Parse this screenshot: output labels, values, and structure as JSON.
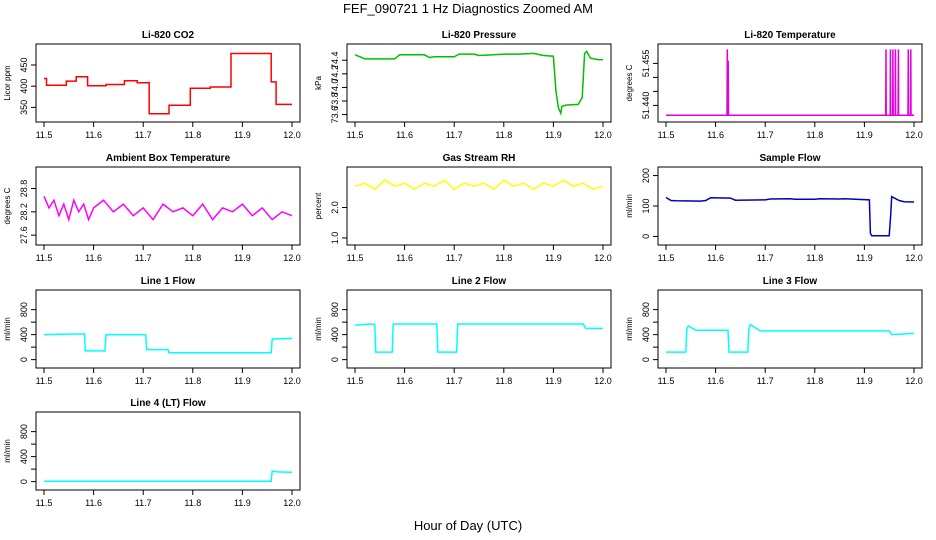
{
  "title": "FEF_090721  1 Hz Diagnostics Zoomed AM",
  "xlabel": "Hour of Day (UTC)",
  "chart_data": [
    {
      "type": "line",
      "title": "Li-820 CO2",
      "ylabel": "Licor ppm",
      "color": "#ff0000",
      "xlim": [
        11.5,
        12.0
      ],
      "ylim": [
        325,
        490
      ],
      "xticks": [
        "11.5",
        "11.6",
        "11.7",
        "11.8",
        "11.9",
        "12.0"
      ],
      "yticks": [
        {
          "value": 350,
          "label": "350"
        },
        {
          "value": 400,
          "label": "400"
        },
        {
          "value": 450,
          "label": "450"
        }
      ],
      "series": [
        {
          "x": [
            11.5,
            11.505,
            11.505,
            11.545,
            11.545,
            11.565,
            11.565,
            11.588,
            11.588,
            11.625,
            11.625,
            11.662,
            11.662,
            11.688,
            11.688,
            11.712,
            11.712,
            11.752,
            11.752,
            11.795,
            11.795,
            11.835,
            11.835,
            11.877,
            11.877,
            11.958,
            11.958,
            11.968,
            11.968,
            12.0
          ],
          "y": [
            418,
            418,
            402,
            402,
            412,
            412,
            422,
            422,
            401,
            401,
            404,
            404,
            413,
            413,
            408,
            408,
            335,
            335,
            355,
            355,
            395,
            395,
            398,
            398,
            477,
            477,
            410,
            410,
            357,
            357
          ]
        }
      ]
    },
    {
      "type": "line",
      "title": "Li-820 Pressure",
      "ylabel": "kPa",
      "color": "#00c000",
      "xlim": [
        11.5,
        12.0
      ],
      "ylim": [
        73.55,
        74.58
      ],
      "xticks": [
        "11.5",
        "11.6",
        "11.7",
        "11.8",
        "11.9",
        "12.0"
      ],
      "yticks": [
        {
          "value": 73.6,
          "label": "73.6"
        },
        {
          "value": 73.8,
          "label": "73.8"
        },
        {
          "value": 74.0,
          "label": "74.0"
        },
        {
          "value": 74.2,
          "label": "74.2"
        },
        {
          "value": 74.4,
          "label": "74.4"
        }
      ],
      "series": [
        {
          "x": [
            11.5,
            11.51,
            11.52,
            11.58,
            11.59,
            11.64,
            11.65,
            11.66,
            11.7,
            11.71,
            11.74,
            11.75,
            11.78,
            11.8,
            11.83,
            11.86,
            11.88,
            11.9,
            11.905,
            11.91,
            11.915,
            11.917,
            11.925,
            11.95,
            11.958,
            11.963,
            11.967,
            11.975,
            11.99,
            12.0
          ],
          "y": [
            74.48,
            74.45,
            74.42,
            74.42,
            74.48,
            74.48,
            74.44,
            74.45,
            74.45,
            74.49,
            74.49,
            74.47,
            74.48,
            74.49,
            74.49,
            74.5,
            74.47,
            74.46,
            73.95,
            73.7,
            73.62,
            73.72,
            73.74,
            73.75,
            73.85,
            74.5,
            74.53,
            74.43,
            74.41,
            74.41
          ]
        }
      ]
    },
    {
      "type": "line",
      "title": "Li-820 Temperature",
      "ylabel": "degrees C",
      "color": "#e000e0",
      "xlim": [
        11.5,
        12.0
      ],
      "ylim": [
        51.4355,
        51.4605
      ],
      "xticks": [
        "11.5",
        "11.6",
        "11.7",
        "11.8",
        "11.9",
        "12.0"
      ],
      "yticks": [
        {
          "value": 51.44,
          "label": "51.440"
        },
        {
          "value": 51.445,
          "label": ""
        },
        {
          "value": 51.45,
          "label": ""
        },
        {
          "value": 51.455,
          "label": "51.455"
        }
      ],
      "series": [
        {
          "x": [
            11.5,
            11.623,
            11.6235,
            11.624,
            11.625,
            11.6255,
            11.626,
            11.943,
            11.9435,
            11.944,
            11.952,
            11.9525,
            11.953,
            11.957,
            11.9575,
            11.958,
            11.962,
            11.9625,
            11.963,
            11.968,
            11.9685,
            11.969,
            11.988,
            11.9885,
            11.989,
            11.993,
            11.9935,
            11.994,
            12.0
          ],
          "y": [
            51.4365,
            51.4365,
            51.46,
            51.4365,
            51.4365,
            51.456,
            51.4365,
            51.4365,
            51.46,
            51.4365,
            51.4365,
            51.46,
            51.4365,
            51.4365,
            51.46,
            51.4365,
            51.4365,
            51.46,
            51.4365,
            51.4365,
            51.46,
            51.4365,
            51.4365,
            51.46,
            51.4365,
            51.4365,
            51.46,
            51.4365,
            51.4365
          ]
        }
      ]
    },
    {
      "type": "line",
      "title": "Ambient Box Temperature",
      "ylabel": "degrees C",
      "color": "#ff00ff",
      "xlim": [
        11.5,
        12.0
      ],
      "ylim": [
        27.45,
        29.25
      ],
      "xticks": [
        "11.5",
        "11.6",
        "11.7",
        "11.8",
        "11.9",
        "12.0"
      ],
      "yticks": [
        {
          "value": 27.6,
          "label": "27.6"
        },
        {
          "value": 28.2,
          "label": "28.2"
        },
        {
          "value": 28.8,
          "label": "28.8"
        }
      ],
      "series": [
        {
          "x": [
            11.5,
            11.51,
            11.52,
            11.53,
            11.54,
            11.55,
            11.56,
            11.57,
            11.58,
            11.59,
            11.6,
            11.62,
            11.64,
            11.66,
            11.68,
            11.7,
            11.72,
            11.74,
            11.76,
            11.78,
            11.8,
            11.82,
            11.84,
            11.86,
            11.88,
            11.9,
            11.92,
            11.94,
            11.96,
            11.98,
            12.0
          ],
          "y": [
            28.6,
            28.3,
            28.5,
            28.1,
            28.4,
            28.0,
            28.5,
            28.2,
            28.4,
            28.0,
            28.3,
            28.5,
            28.2,
            28.4,
            28.1,
            28.3,
            28.0,
            28.4,
            28.2,
            28.3,
            28.1,
            28.4,
            28.0,
            28.3,
            28.2,
            28.4,
            28.1,
            28.3,
            28.0,
            28.2,
            28.1
          ]
        }
      ]
    },
    {
      "type": "line",
      "title": "Gas Stream RH",
      "ylabel": "percent",
      "color": "#ffff00",
      "xlim": [
        11.5,
        12.0
      ],
      "ylim": [
        0.9,
        3.2
      ],
      "xticks": [
        "11.5",
        "11.6",
        "11.7",
        "11.8",
        "11.9",
        "12.0"
      ],
      "yticks": [
        {
          "value": 1.0,
          "label": "1.0"
        },
        {
          "value": 2.0,
          "label": "2.0"
        }
      ],
      "series": [
        {
          "x": [
            11.5,
            11.52,
            11.54,
            11.56,
            11.58,
            11.6,
            11.62,
            11.64,
            11.66,
            11.68,
            11.7,
            11.72,
            11.74,
            11.76,
            11.78,
            11.8,
            11.82,
            11.84,
            11.86,
            11.88,
            11.9,
            11.92,
            11.94,
            11.96,
            11.98,
            12.0
          ],
          "y": [
            2.7,
            2.8,
            2.6,
            2.9,
            2.7,
            2.8,
            2.6,
            2.8,
            2.7,
            2.9,
            2.6,
            2.8,
            2.7,
            2.8,
            2.6,
            2.9,
            2.7,
            2.8,
            2.6,
            2.8,
            2.7,
            2.9,
            2.7,
            2.8,
            2.6,
            2.7
          ]
        }
      ]
    },
    {
      "type": "line",
      "title": "Sample Flow",
      "ylabel": "ml/min",
      "color": "#0000c0",
      "xlim": [
        11.5,
        12.0
      ],
      "ylim": [
        -15,
        215
      ],
      "xticks": [
        "11.5",
        "11.6",
        "11.7",
        "11.8",
        "11.9",
        "12.0"
      ],
      "yticks": [
        {
          "value": 0,
          "label": "0"
        },
        {
          "value": 100,
          "label": "100"
        },
        {
          "value": 200,
          "label": "200"
        }
      ],
      "series": [
        {
          "x": [
            11.5,
            11.51,
            11.52,
            11.57,
            11.58,
            11.59,
            11.63,
            11.64,
            11.7,
            11.71,
            11.75,
            11.76,
            11.8,
            11.81,
            11.85,
            11.86,
            11.91,
            11.912,
            11.915,
            11.95,
            11.953,
            11.955,
            11.97,
            11.98,
            12.0
          ],
          "y": [
            128,
            118,
            117,
            116,
            118,
            127,
            126,
            119,
            120,
            123,
            124,
            122,
            122,
            124,
            123,
            124,
            120,
            10,
            2,
            2,
            70,
            131,
            118,
            114,
            113
          ]
        }
      ]
    },
    {
      "type": "line",
      "title": "Line 1 Flow",
      "ylabel": "ml/min",
      "color": "#00ffff",
      "xlim": [
        11.5,
        12.0
      ],
      "ylim": [
        -70,
        1050
      ],
      "xticks": [
        "11.5",
        "11.6",
        "11.7",
        "11.8",
        "11.9",
        "12.0"
      ],
      "yticks": [
        {
          "value": 0,
          "label": "0"
        },
        {
          "value": 200,
          "label": ""
        },
        {
          "value": 400,
          "label": "400"
        },
        {
          "value": 600,
          "label": ""
        },
        {
          "value": 800,
          "label": "800"
        }
      ],
      "series": [
        {
          "x": [
            11.5,
            11.56,
            11.582,
            11.583,
            11.623,
            11.625,
            11.705,
            11.707,
            11.75,
            11.752,
            11.958,
            11.96,
            12.0
          ],
          "y": [
            400,
            410,
            410,
            140,
            140,
            400,
            400,
            160,
            160,
            110,
            110,
            330,
            340
          ]
        }
      ]
    },
    {
      "type": "line",
      "title": "Line 2 Flow",
      "ylabel": "ml/min",
      "color": "#00ffff",
      "xlim": [
        11.5,
        12.0
      ],
      "ylim": [
        -70,
        1050
      ],
      "xticks": [
        "11.5",
        "11.6",
        "11.7",
        "11.8",
        "11.9",
        "12.0"
      ],
      "yticks": [
        {
          "value": 0,
          "label": "0"
        },
        {
          "value": 200,
          "label": ""
        },
        {
          "value": 400,
          "label": "400"
        },
        {
          "value": 600,
          "label": ""
        },
        {
          "value": 800,
          "label": "800"
        }
      ],
      "series": [
        {
          "x": [
            11.5,
            11.53,
            11.54,
            11.542,
            11.575,
            11.577,
            11.665,
            11.667,
            11.705,
            11.707,
            11.96,
            11.965,
            12.0
          ],
          "y": [
            550,
            570,
            560,
            120,
            120,
            570,
            570,
            120,
            120,
            570,
            570,
            500,
            500
          ]
        }
      ]
    },
    {
      "type": "line",
      "title": "Line 3 Flow",
      "ylabel": "ml/min",
      "color": "#00ffff",
      "xlim": [
        11.5,
        12.0
      ],
      "ylim": [
        -70,
        1050
      ],
      "xticks": [
        "11.5",
        "11.6",
        "11.7",
        "11.8",
        "11.9",
        "12.0"
      ],
      "yticks": [
        {
          "value": 0,
          "label": "0"
        },
        {
          "value": 200,
          "label": ""
        },
        {
          "value": 400,
          "label": "400"
        },
        {
          "value": 600,
          "label": ""
        },
        {
          "value": 800,
          "label": "800"
        }
      ],
      "series": [
        {
          "x": [
            11.5,
            11.54,
            11.542,
            11.545,
            11.56,
            11.625,
            11.627,
            11.665,
            11.667,
            11.67,
            11.69,
            11.95,
            11.955,
            12.0
          ],
          "y": [
            120,
            120,
            480,
            540,
            470,
            470,
            120,
            120,
            480,
            560,
            460,
            460,
            400,
            420
          ]
        }
      ]
    },
    {
      "type": "line",
      "title": "Line 4 (LT) Flow",
      "ylabel": "ml/min",
      "color": "#00ffff",
      "xlim": [
        11.5,
        12.0
      ],
      "ylim": [
        -70,
        1050
      ],
      "xticks": [
        "11.5",
        "11.6",
        "11.7",
        "11.8",
        "11.9",
        "12.0"
      ],
      "yticks": [
        {
          "value": 0,
          "label": "0"
        },
        {
          "value": 200,
          "label": ""
        },
        {
          "value": 400,
          "label": "400"
        },
        {
          "value": 600,
          "label": ""
        },
        {
          "value": 800,
          "label": "800"
        }
      ],
      "series": [
        {
          "x": [
            11.5,
            11.958,
            11.96,
            11.97,
            12.0
          ],
          "y": [
            5,
            5,
            170,
            155,
            150
          ]
        }
      ]
    }
  ]
}
